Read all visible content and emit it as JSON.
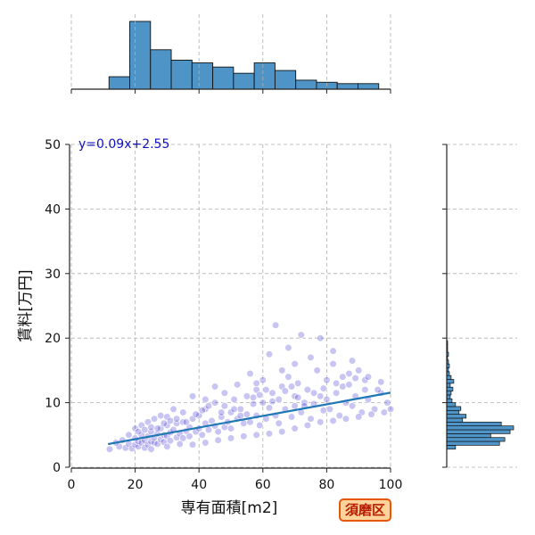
{
  "badge": {
    "label": "須磨区",
    "bg": "#ffd39a",
    "border": "#e8560c",
    "text": "#b81c00"
  },
  "chart_data": {
    "type": "scatter",
    "xlabel": "専有面積[m2]",
    "ylabel": "賃料[万円]",
    "xlim": [
      0,
      100
    ],
    "ylim": [
      0,
      50
    ],
    "xticks": [
      0,
      20,
      40,
      60,
      80,
      100
    ],
    "yticks": [
      0,
      10,
      20,
      30,
      40,
      50
    ],
    "grid": true,
    "regression": {
      "label": "y=0.09x+2.55",
      "slope": 0.09,
      "intercept": 2.55,
      "x_range": [
        11.5,
        100
      ],
      "color": "#1f77b4"
    },
    "point_color": "#3a2fcf",
    "points": [
      [
        12,
        2.8
      ],
      [
        15,
        3.2
      ],
      [
        17,
        3.0
      ],
      [
        18,
        3.6
      ],
      [
        19,
        2.9
      ],
      [
        20,
        3.5
      ],
      [
        20,
        4.5
      ],
      [
        21,
        3.2
      ],
      [
        21,
        4.0
      ],
      [
        22,
        5.0
      ],
      [
        22,
        3.8
      ],
      [
        23,
        4.2
      ],
      [
        23,
        3.0
      ],
      [
        24,
        4.8
      ],
      [
        24,
        3.5
      ],
      [
        25,
        5.5
      ],
      [
        25,
        4.0
      ],
      [
        26,
        3.8
      ],
      [
        26,
        4.6
      ],
      [
        27,
        5.2
      ],
      [
        27,
        3.6
      ],
      [
        28,
        6.0
      ],
      [
        28,
        4.3
      ],
      [
        29,
        5.0
      ],
      [
        29,
        3.9
      ],
      [
        30,
        4.8
      ],
      [
        30,
        6.5
      ],
      [
        31,
        5.4
      ],
      [
        31,
        4.1
      ],
      [
        32,
        5.8
      ],
      [
        33,
        4.6
      ],
      [
        33,
        6.8
      ],
      [
        34,
        5.2
      ],
      [
        35,
        7.0
      ],
      [
        35,
        4.5
      ],
      [
        36,
        5.6
      ],
      [
        37,
        6.2
      ],
      [
        37,
        4.8
      ],
      [
        38,
        7.5
      ],
      [
        39,
        5.5
      ],
      [
        40,
        6.0
      ],
      [
        40,
        8.0
      ],
      [
        41,
        5.0
      ],
      [
        42,
        6.8
      ],
      [
        42,
        9.0
      ],
      [
        43,
        5.8
      ],
      [
        44,
        7.2
      ],
      [
        45,
        6.4
      ],
      [
        45,
        10.0
      ],
      [
        46,
        5.5
      ],
      [
        47,
        7.8
      ],
      [
        48,
        6.2
      ],
      [
        48,
        9.5
      ],
      [
        49,
        7.0
      ],
      [
        50,
        8.5
      ],
      [
        50,
        6.0
      ],
      [
        51,
        10.5
      ],
      [
        52,
        7.5
      ],
      [
        53,
        9.0
      ],
      [
        54,
        6.8
      ],
      [
        55,
        11.0
      ],
      [
        55,
        8.2
      ],
      [
        56,
        7.0
      ],
      [
        57,
        9.8
      ],
      [
        58,
        12.0
      ],
      [
        58,
        8.0
      ],
      [
        59,
        6.5
      ],
      [
        60,
        10.0
      ],
      [
        60,
        13.5
      ],
      [
        61,
        7.5
      ],
      [
        62,
        9.2
      ],
      [
        63,
        11.5
      ],
      [
        64,
        8.0
      ],
      [
        65,
        10.5
      ],
      [
        65,
        6.8
      ],
      [
        66,
        12.5
      ],
      [
        67,
        9.0
      ],
      [
        68,
        14.0
      ],
      [
        69,
        7.8
      ],
      [
        70,
        11.0
      ],
      [
        70,
        9.5
      ],
      [
        71,
        13.0
      ],
      [
        72,
        8.5
      ],
      [
        73,
        10.0
      ],
      [
        74,
        12.0
      ],
      [
        75,
        7.5
      ],
      [
        76,
        9.8
      ],
      [
        77,
        15.0
      ],
      [
        78,
        11.0
      ],
      [
        79,
        8.8
      ],
      [
        80,
        10.5
      ],
      [
        80,
        13.5
      ],
      [
        81,
        9.0
      ],
      [
        82,
        16.0
      ],
      [
        83,
        11.5
      ],
      [
        84,
        8.0
      ],
      [
        85,
        12.5
      ],
      [
        86,
        10.0
      ],
      [
        87,
        14.5
      ],
      [
        88,
        9.5
      ],
      [
        89,
        11.0
      ],
      [
        90,
        15.0
      ],
      [
        91,
        8.5
      ],
      [
        92,
        12.0
      ],
      [
        93,
        10.5
      ],
      [
        95,
        9.0
      ],
      [
        97,
        11.5
      ],
      [
        99,
        10.0
      ],
      [
        100,
        9.0
      ],
      [
        64,
        22.0
      ],
      [
        72,
        20.5
      ],
      [
        78,
        20.0
      ],
      [
        68,
        18.5
      ],
      [
        82,
        18.0
      ],
      [
        88,
        16.5
      ],
      [
        75,
        17.0
      ],
      [
        62,
        17.5
      ],
      [
        56,
        14.5
      ],
      [
        45,
        12.5
      ],
      [
        38,
        11.0
      ],
      [
        42,
        10.5
      ],
      [
        32,
        9.0
      ],
      [
        28,
        8.0
      ],
      [
        26,
        7.5
      ],
      [
        35,
        8.5
      ],
      [
        48,
        11.5
      ],
      [
        52,
        12.8
      ],
      [
        58,
        13.0
      ],
      [
        66,
        15.0
      ],
      [
        70,
        16.0
      ],
      [
        85,
        14.0
      ],
      [
        92,
        13.5
      ],
      [
        96,
        12.0
      ],
      [
        20,
        6.0
      ],
      [
        22,
        6.5
      ],
      [
        24,
        7.0
      ],
      [
        30,
        7.8
      ],
      [
        18,
        5.0
      ],
      [
        16,
        4.2
      ],
      [
        14,
        3.8
      ],
      [
        25,
        2.8
      ],
      [
        30,
        3.2
      ],
      [
        34,
        3.6
      ],
      [
        38,
        3.5
      ],
      [
        42,
        3.8
      ],
      [
        46,
        4.2
      ],
      [
        50,
        4.5
      ],
      [
        54,
        4.8
      ],
      [
        58,
        5.0
      ],
      [
        62,
        5.2
      ],
      [
        66,
        5.5
      ],
      [
        70,
        6.0
      ],
      [
        74,
        6.5
      ],
      [
        78,
        7.0
      ],
      [
        82,
        7.2
      ],
      [
        86,
        7.5
      ],
      [
        90,
        7.8
      ],
      [
        94,
        8.2
      ],
      [
        98,
        8.5
      ],
      [
        21,
        5.5
      ],
      [
        23,
        5.8
      ],
      [
        25,
        6.2
      ],
      [
        27,
        6.0
      ],
      [
        29,
        6.8
      ],
      [
        31,
        7.2
      ],
      [
        33,
        7.5
      ],
      [
        36,
        7.0
      ],
      [
        39,
        8.2
      ],
      [
        41,
        8.8
      ],
      [
        43,
        9.5
      ],
      [
        47,
        8.5
      ],
      [
        51,
        9.0
      ],
      [
        53,
        8.0
      ],
      [
        57,
        10.8
      ],
      [
        59,
        11.2
      ],
      [
        61,
        12.0
      ],
      [
        63,
        10.2
      ],
      [
        67,
        11.8
      ],
      [
        69,
        12.5
      ],
      [
        71,
        10.8
      ],
      [
        73,
        9.5
      ],
      [
        76,
        11.5
      ],
      [
        79,
        12.2
      ],
      [
        83,
        13.0
      ],
      [
        87,
        12.8
      ],
      [
        89,
        13.8
      ],
      [
        93,
        14.0
      ],
      [
        97,
        13.2
      ]
    ],
    "hist_x": {
      "bin_edges": [
        0,
        6.3,
        12.6,
        18.9,
        25.2,
        31.5,
        37.8,
        44.1,
        50.4,
        56.7,
        63.0,
        69.3,
        75.6,
        81.9,
        88.2,
        94.5
      ],
      "counts": [
        0,
        0,
        18,
        98,
        57,
        42,
        38,
        32,
        23,
        38,
        27,
        13,
        10,
        8,
        8
      ],
      "visible_edges": [
        11.8,
        18.3,
        24.8,
        31.3,
        37.8,
        44.3,
        50.8,
        57.3,
        63.8,
        70.3,
        76.8,
        83.3,
        89.8,
        96.3
      ]
    },
    "hist_y": {
      "bin_width": 0.6,
      "bins": [
        [
          2.8,
          10
        ],
        [
          3.4,
          60
        ],
        [
          4.0,
          66
        ],
        [
          4.6,
          50
        ],
        [
          5.2,
          72
        ],
        [
          5.8,
          76
        ],
        [
          6.4,
          62
        ],
        [
          7.0,
          18
        ],
        [
          7.6,
          22
        ],
        [
          8.2,
          14
        ],
        [
          8.8,
          16
        ],
        [
          9.4,
          10
        ],
        [
          10.0,
          6
        ],
        [
          10.6,
          4
        ],
        [
          11.2,
          5
        ],
        [
          11.8,
          7
        ],
        [
          12.4,
          4
        ],
        [
          13.0,
          8
        ],
        [
          13.6,
          5
        ],
        [
          14.2,
          3
        ],
        [
          14.8,
          2
        ],
        [
          15.4,
          3
        ],
        [
          16.0,
          2
        ],
        [
          16.6,
          1
        ],
        [
          17.2,
          2
        ],
        [
          17.8,
          1
        ],
        [
          18.4,
          1
        ],
        [
          19.0,
          1
        ]
      ]
    }
  }
}
